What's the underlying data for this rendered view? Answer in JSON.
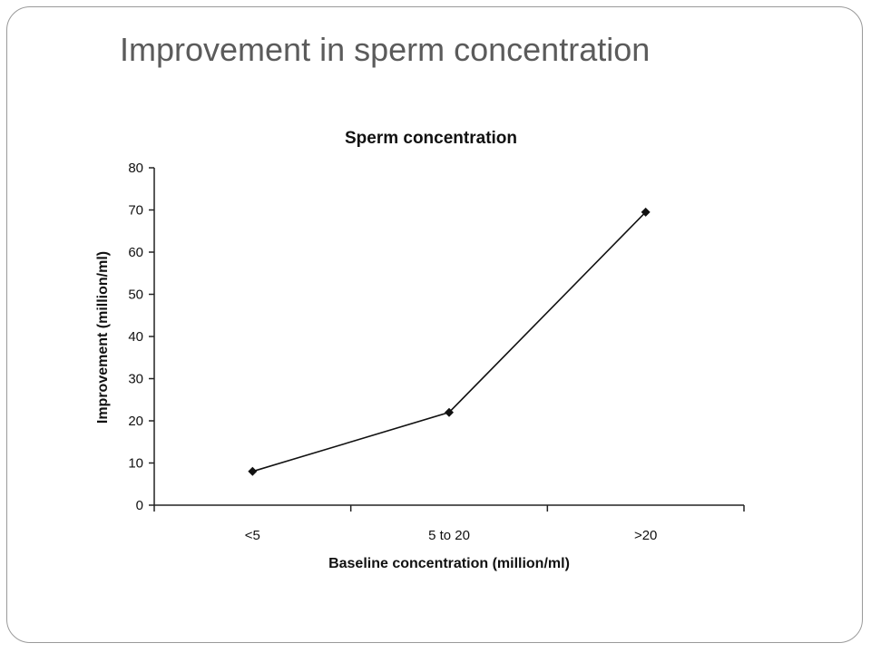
{
  "slide": {
    "title": "Improvement in sperm concentration"
  },
  "chart_data": {
    "type": "line",
    "title": "Sperm concentration",
    "xlabel": "Baseline concentration (million/ml)",
    "ylabel": "Improvement (million/ml)",
    "categories": [
      "<5",
      "5 to 20",
      ">20"
    ],
    "series": [
      {
        "values": [
          8,
          22,
          69.5
        ]
      }
    ],
    "ylim": [
      0,
      80
    ],
    "yticks": [
      0,
      10,
      20,
      30,
      40,
      50,
      60,
      70,
      80
    ],
    "grid": false,
    "legend": "none",
    "colors": {
      "line": "#111111",
      "axis": "#222222"
    }
  }
}
